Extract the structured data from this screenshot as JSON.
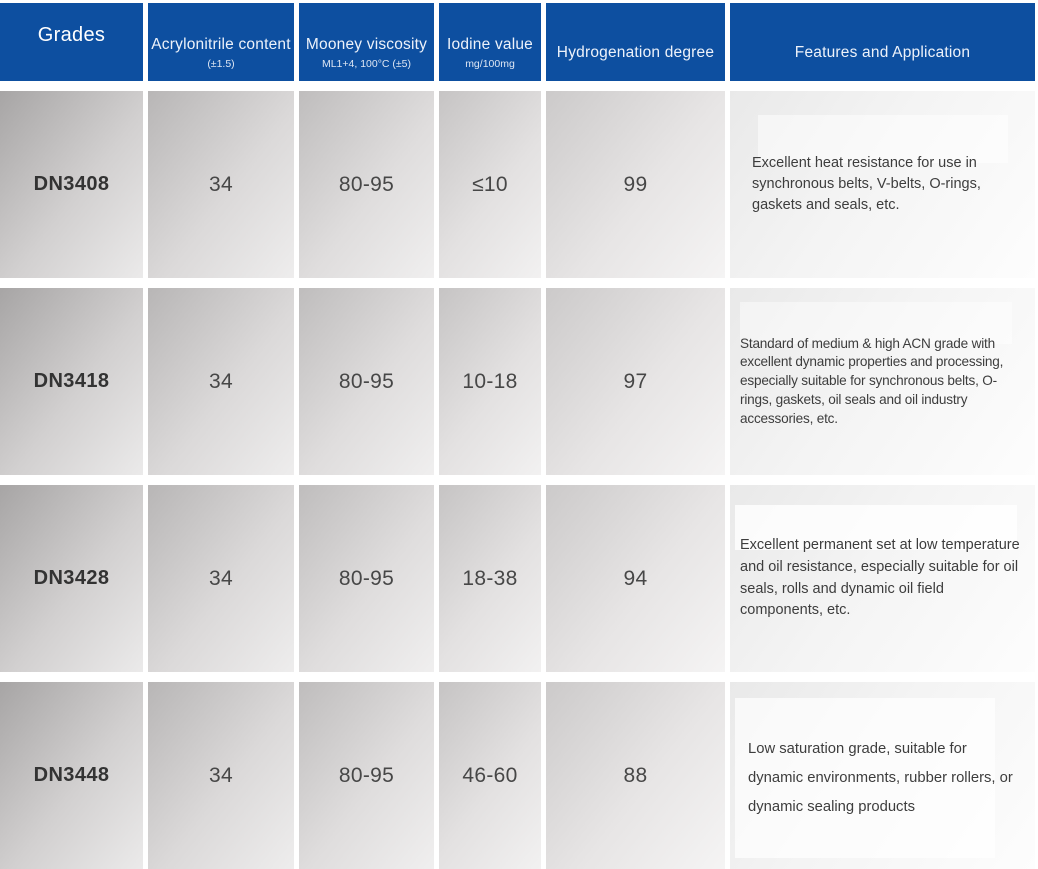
{
  "colors": {
    "header_blue": "#0d4fa0",
    "header_text": "#ffffff",
    "body_text": "#3d3d3d"
  },
  "header": {
    "grades_label": "Grades",
    "columns": [
      {
        "label": "Acrylonitrile content",
        "sub": "(±1.5)"
      },
      {
        "label": "Mooney viscosity",
        "sub": "ML1+4, 100°C (±5)"
      },
      {
        "label": "Iodine value",
        "sub": "mg/100mg"
      },
      {
        "label": "Hydrogenation degree",
        "sub": ""
      },
      {
        "label": "Features and Application",
        "sub": ""
      }
    ]
  },
  "rows": [
    {
      "grade": "DN3408",
      "acrylonitrile": "34",
      "mooney": "80-95",
      "iodine": "≤10",
      "hydrogenation": "99",
      "features": "Excellent heat resistance for use in synchronous belts, V-belts, O-rings, gaskets and seals, etc."
    },
    {
      "grade": "DN3418",
      "acrylonitrile": "34",
      "mooney": "80-95",
      "iodine": "10-18",
      "hydrogenation": "97",
      "features": "Standard of medium & high ACN grade with excellent dynamic properties and processing, especially suitable for synchronous belts, O-rings, gaskets, oil seals and oil industry accessories, etc."
    },
    {
      "grade": "DN3428",
      "acrylonitrile": "34",
      "mooney": "80-95",
      "iodine": "18-38",
      "hydrogenation": "94",
      "features": "Excellent permanent set at low temperature and oil resistance, especially suitable for oil seals, rolls and dynamic oil field components, etc."
    },
    {
      "grade": "DN3448",
      "acrylonitrile": "34",
      "mooney": "80-95",
      "iodine": "46-60",
      "hydrogenation": "88",
      "features": "Low saturation grade, suitable for dynamic environments, rubber rollers, or dynamic sealing products"
    }
  ]
}
